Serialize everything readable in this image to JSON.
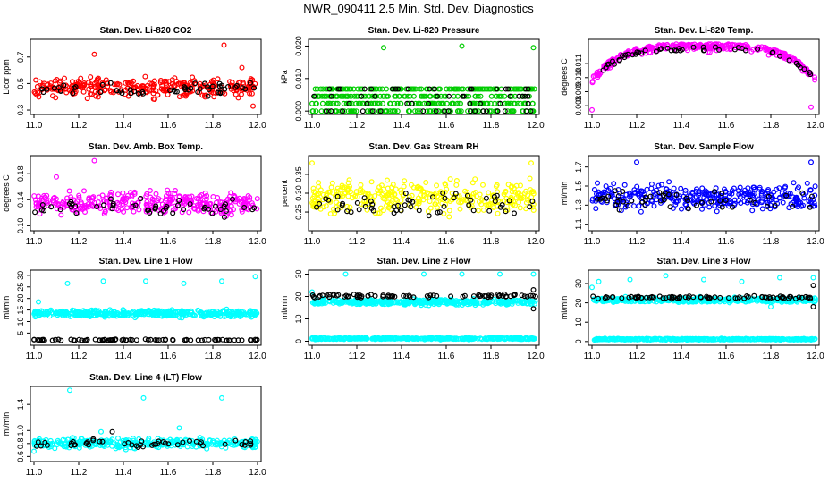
{
  "page": {
    "title": "NWR_090411  2.5 Min. Std. Dev. Diagnostics"
  },
  "colors": {
    "axis": "#000000",
    "flagged": "#000000",
    "red": "#ff0000",
    "green": "#00cc00",
    "magenta": "#ff00ff",
    "yellow": "#ffff00",
    "blue": "#0000ff",
    "cyan": "#00ffff"
  },
  "chart_data": [
    {
      "type": "scatter",
      "title": "Stan. Dev. Li-820 CO2",
      "ylabel": "Licor ppm",
      "xlim": [
        11.0,
        12.0
      ],
      "x_ticks": [
        "11.0",
        "11.2",
        "11.4",
        "11.6",
        "11.8",
        "12.0"
      ],
      "ylim": [
        0.28,
        0.82
      ],
      "y_ticks": [
        "0.3",
        "0.5",
        "0.7"
      ],
      "series": [
        {
          "color": "red",
          "kind": "band",
          "center": 0.47,
          "spread": 0.06,
          "n": 300,
          "outliers": [
            [
              11.27,
              0.72
            ],
            [
              11.85,
              0.79
            ],
            [
              11.93,
              0.62
            ],
            [
              11.98,
              0.33
            ]
          ]
        },
        {
          "color": "flagged",
          "kind": "band",
          "center": 0.46,
          "spread": 0.04,
          "n": 55,
          "outliers": []
        }
      ]
    },
    {
      "type": "scatter",
      "title": "Stan. Dev. Li-820 Pressure",
      "ylabel": "kPa",
      "xlim": [
        11.0,
        12.0
      ],
      "x_ticks": [
        "11.0",
        "11.2",
        "11.4",
        "11.6",
        "11.8",
        "12.0"
      ],
      "ylim": [
        -0.0005,
        0.0215
      ],
      "y_ticks": [
        "0.000",
        "0.010",
        "0.020"
      ],
      "series": [
        {
          "color": "green",
          "kind": "levels",
          "levels": [
            0.0,
            0.0023,
            0.0045,
            0.0068
          ],
          "n": 420,
          "outliers": [
            [
              11.32,
              0.0195
            ],
            [
              11.67,
              0.02
            ],
            [
              11.99,
              0.0195
            ]
          ]
        },
        {
          "color": "flagged",
          "kind": "levels",
          "levels": [
            0.0,
            0.0023,
            0.0045,
            0.0068
          ],
          "n": 60,
          "outliers": []
        }
      ]
    },
    {
      "type": "scatter",
      "title": "Stan. Dev. Li-820 Temp.",
      "ylabel": "degrees C",
      "xlim": [
        11.0,
        12.0
      ],
      "x_ticks": [
        "11.0",
        "11.2",
        "11.4",
        "11.6",
        "11.8",
        "12.0"
      ],
      "ylim": [
        0.0075,
        0.0126
      ],
      "y_ticks": [
        "0.008",
        "0.009",
        "0.010",
        "0.011"
      ],
      "series": [
        {
          "color": "magenta",
          "kind": "arch",
          "peak": 0.0124,
          "base": 0.01,
          "spread": 0.0004,
          "n": 330,
          "outliers": [
            [
              11.0,
              0.0077
            ],
            [
              11.98,
              0.0079
            ]
          ]
        },
        {
          "color": "flagged",
          "kind": "arch",
          "peak": 0.0122,
          "base": 0.01,
          "spread": 0.0003,
          "n": 50,
          "outliers": []
        }
      ]
    },
    {
      "type": "scatter",
      "title": "Stan. Dev. Amb. Box Temp.",
      "ylabel": "degrees C",
      "xlim": [
        11.0,
        12.0
      ],
      "x_ticks": [
        "11.0",
        "11.2",
        "11.4",
        "11.6",
        "11.8",
        "12.0"
      ],
      "ylim": [
        0.095,
        0.205
      ],
      "y_ticks": [
        "0.10",
        "0.14",
        "0.18"
      ],
      "series": [
        {
          "color": "magenta",
          "kind": "band",
          "center": 0.135,
          "spread": 0.015,
          "n": 330,
          "outliers": [
            [
              11.27,
              0.2
            ],
            [
              11.1,
              0.175
            ]
          ]
        },
        {
          "color": "flagged",
          "kind": "band",
          "center": 0.128,
          "spread": 0.01,
          "n": 50,
          "outliers": []
        }
      ]
    },
    {
      "type": "scatter",
      "title": "Stan. Dev. Gas Stream RH",
      "ylabel": "percent",
      "xlim": [
        11.0,
        12.0
      ],
      "x_ticks": [
        "11.0",
        "11.2",
        "11.4",
        "11.6",
        "11.8",
        "12.0"
      ],
      "ylim": [
        0.205,
        0.395
      ],
      "y_ticks": [
        "0.25",
        "0.30",
        "0.35"
      ],
      "series": [
        {
          "color": "yellow",
          "kind": "band",
          "center": 0.29,
          "spread": 0.035,
          "n": 330,
          "outliers": [
            [
              11.0,
              0.38
            ],
            [
              11.98,
              0.38
            ]
          ]
        },
        {
          "color": "flagged",
          "kind": "band",
          "center": 0.275,
          "spread": 0.03,
          "n": 55,
          "outliers": []
        }
      ]
    },
    {
      "type": "scatter",
      "title": "Stan. Dev. Sample Flow",
      "ylabel": "ml/min",
      "xlim": [
        11.0,
        12.0
      ],
      "x_ticks": [
        "11.0",
        "11.2",
        "11.4",
        "11.6",
        "11.8",
        "12.0"
      ],
      "ylim": [
        1.05,
        1.8
      ],
      "y_ticks": [
        "1.1",
        "1.3",
        "1.5",
        "1.7"
      ],
      "series": [
        {
          "color": "blue",
          "kind": "band",
          "center": 1.38,
          "spread": 0.11,
          "n": 330,
          "outliers": [
            [
              11.2,
              1.75
            ],
            [
              11.98,
              1.75
            ]
          ]
        },
        {
          "color": "flagged",
          "kind": "band",
          "center": 1.36,
          "spread": 0.08,
          "n": 50,
          "outliers": []
        }
      ]
    },
    {
      "type": "scatter",
      "title": "Stan. Dev. Line 1 Flow",
      "ylabel": "ml/min",
      "xlim": [
        11.0,
        12.0
      ],
      "x_ticks": [
        "11.0",
        "11.2",
        "11.4",
        "11.6",
        "11.8",
        "12.0"
      ],
      "ylim": [
        0.5,
        31.5
      ],
      "y_ticks": [
        "5",
        "10",
        "15",
        "20",
        "25",
        "30"
      ],
      "series": [
        {
          "color": "cyan",
          "kind": "band",
          "center": 13.5,
          "spread": 1.3,
          "n": 420,
          "outliers": [
            [
              11.15,
              26.5
            ],
            [
              11.31,
              27.5
            ],
            [
              11.5,
              27.5
            ],
            [
              11.67,
              26.5
            ],
            [
              11.84,
              27.5
            ],
            [
              11.99,
              29.5
            ],
            [
              11.02,
              18.5
            ]
          ]
        },
        {
          "color": "flagged",
          "kind": "band",
          "center": 2.0,
          "spread": 0.25,
          "n": 80,
          "outliers": []
        }
      ]
    },
    {
      "type": "scatter",
      "title": "Stan. Dev. Line 2 Flow",
      "ylabel": "ml/min",
      "xlim": [
        11.0,
        12.0
      ],
      "x_ticks": [
        "11.0",
        "11.2",
        "11.4",
        "11.6",
        "11.8",
        "12.0"
      ],
      "ylim": [
        -1,
        31
      ],
      "y_ticks": [
        "0",
        "10",
        "20",
        "30"
      ],
      "series": [
        {
          "color": "cyan",
          "kind": "band",
          "center": 17.5,
          "spread": 1.0,
          "n": 420,
          "outliers": [
            [
              11.15,
              30
            ],
            [
              11.5,
              30
            ],
            [
              11.67,
              30
            ],
            [
              11.84,
              30
            ],
            [
              11.99,
              30
            ],
            [
              11.0,
              22
            ]
          ]
        },
        {
          "color": "cyan",
          "kind": "band",
          "center": 1.2,
          "spread": 0.3,
          "n": 420,
          "outliers": []
        },
        {
          "color": "flagged",
          "kind": "band",
          "center": 20.2,
          "spread": 0.6,
          "n": 80,
          "outliers": [
            [
              11.99,
              14.5
            ],
            [
              11.99,
              23
            ]
          ]
        }
      ]
    },
    {
      "type": "scatter",
      "title": "Stan. Dev. Line 3 Flow",
      "ylabel": "ml/min",
      "xlim": [
        11.0,
        12.0
      ],
      "x_ticks": [
        "11.0",
        "11.2",
        "11.4",
        "11.6",
        "11.8",
        "12.0"
      ],
      "ylim": [
        -1,
        36
      ],
      "y_ticks": [
        "0",
        "10",
        "20",
        "30"
      ],
      "series": [
        {
          "color": "cyan",
          "kind": "band",
          "center": 21.5,
          "spread": 1.0,
          "n": 420,
          "outliers": [
            [
              11.03,
              31
            ],
            [
              11.17,
              32
            ],
            [
              11.33,
              34
            ],
            [
              11.5,
              32
            ],
            [
              11.67,
              31
            ],
            [
              11.84,
              33
            ],
            [
              11.99,
              33
            ],
            [
              11.0,
              28
            ],
            [
              11.8,
              18
            ]
          ]
        },
        {
          "color": "cyan",
          "kind": "band",
          "center": 1.2,
          "spread": 0.3,
          "n": 420,
          "outliers": []
        },
        {
          "color": "flagged",
          "kind": "band",
          "center": 22.8,
          "spread": 0.6,
          "n": 80,
          "outliers": [
            [
              11.99,
              18
            ],
            [
              11.99,
              29
            ]
          ]
        }
      ]
    },
    {
      "type": "scatter",
      "title": "Stan. Dev. Line 4 (LT) Flow",
      "ylabel": "ml/min",
      "xlim": [
        11.0,
        12.0
      ],
      "x_ticks": [
        "11.0",
        "11.2",
        "11.4",
        "11.6",
        "11.8",
        "12.0"
      ],
      "ylim": [
        0.55,
        1.65
      ],
      "y_ticks": [
        "0.6",
        "0.8",
        "1.0",
        "1.4"
      ],
      "series": [
        {
          "color": "cyan",
          "kind": "band",
          "center": 0.8,
          "spread": 0.06,
          "n": 330,
          "outliers": [
            [
              11.16,
              1.62
            ],
            [
              11.49,
              1.5
            ],
            [
              11.84,
              1.5
            ],
            [
              11.65,
              1.04
            ],
            [
              11.3,
              0.98
            ],
            [
              11.0,
              0.68
            ]
          ]
        },
        {
          "color": "flagged",
          "kind": "band",
          "center": 0.8,
          "spread": 0.05,
          "n": 50,
          "outliers": [
            [
              11.35,
              0.98
            ]
          ]
        }
      ]
    }
  ]
}
